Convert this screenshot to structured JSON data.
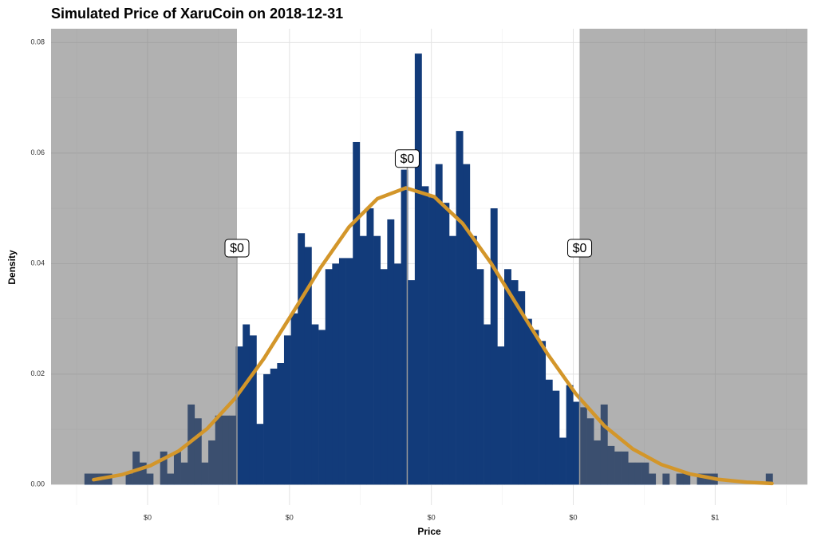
{
  "chart_data": {
    "type": "histogram",
    "title": "Simulated Price of XaruCoin on 2018-12-31",
    "xlabel": "Price",
    "ylabel": "Density",
    "bins": [
      0.0555,
      0.06035,
      0.0652,
      0.07005,
      0.0749,
      0.07975,
      0.0846,
      0.08945,
      0.0943,
      0.09915,
      0.104,
      0.10885,
      0.1137,
      0.11855,
      0.1234,
      0.12825,
      0.1331,
      0.13795,
      0.1428,
      0.14765,
      0.1525,
      0.15735,
      0.1622,
      0.16705,
      0.1719,
      0.17675,
      0.1816,
      0.18645,
      0.1913,
      0.19615,
      0.201,
      0.20585,
      0.2107,
      0.21555,
      0.2204,
      0.22525,
      0.2301,
      0.23495,
      0.2398,
      0.24465,
      0.2495,
      0.25435,
      0.2592,
      0.26405,
      0.2689,
      0.27375,
      0.2786,
      0.28345,
      0.2883,
      0.29315,
      0.298,
      0.30285,
      0.3077,
      0.31255,
      0.3174,
      0.32225,
      0.3271,
      0.33195,
      0.3368,
      0.34165,
      0.3465,
      0.35135,
      0.3562,
      0.36105,
      0.3659,
      0.37075,
      0.3756,
      0.38045,
      0.3853,
      0.39015,
      0.395,
      0.39985,
      0.4047,
      0.40955,
      0.4144,
      0.41925,
      0.4241,
      0.42895,
      0.4338,
      0.43865,
      0.4435,
      0.44835,
      0.4532,
      0.45805,
      0.4629,
      0.46775,
      0.4726,
      0.47745,
      0.4823,
      0.48715,
      0.492,
      0.49685,
      0.5017,
      0.50655,
      0.5114,
      0.51625,
      0.5211,
      0.52595,
      0.5308,
      0.53565,
      0.5405
    ],
    "values": [
      0.002,
      0.002,
      0.002,
      0.002,
      0,
      0,
      0.002,
      0.006,
      0.004,
      0.002,
      0,
      0.006,
      0.002,
      0.006,
      0.004,
      0.0145,
      0.012,
      0.004,
      0.008,
      0.0125,
      0.0125,
      0.0125,
      0.025,
      0.029,
      0.027,
      0.011,
      0.02,
      0.021,
      0.022,
      0.027,
      0.031,
      0.0455,
      0.043,
      0.029,
      0.028,
      0.039,
      0.04,
      0.041,
      0.041,
      0.062,
      0.045,
      0.05,
      0.045,
      0.039,
      0.048,
      0.04,
      0.057,
      0.037,
      0.078,
      0.054,
      0.052,
      0.058,
      0.051,
      0.045,
      0.064,
      0.058,
      0.045,
      0.039,
      0.029,
      0.05,
      0.025,
      0.039,
      0.037,
      0.035,
      0.03,
      0.028,
      0.026,
      0.019,
      0.017,
      0.0085,
      0.018,
      0.015,
      0.014,
      0.012,
      0.008,
      0.0145,
      0.007,
      0.006,
      0.006,
      0.004,
      0.004,
      0.004,
      0.002,
      0,
      0.002,
      0,
      0.002,
      0.002,
      0,
      0.002,
      0.002,
      0.002,
      0,
      0,
      0,
      0,
      0,
      0,
      0,
      0.002
    ],
    "color": "#123b7a",
    "curve": {
      "color": "#d3962a",
      "x": [
        0.062,
        0.082,
        0.102,
        0.122,
        0.142,
        0.162,
        0.182,
        0.202,
        0.222,
        0.242,
        0.262,
        0.282,
        0.302,
        0.322,
        0.342,
        0.362,
        0.382,
        0.402,
        0.422,
        0.442,
        0.462,
        0.482,
        0.502,
        0.522,
        0.54
      ],
      "values": [
        0.00089,
        0.00181,
        0.00344,
        0.0061,
        0.01013,
        0.01572,
        0.02282,
        0.03097,
        0.0393,
        0.04664,
        0.05175,
        0.0537,
        0.0521,
        0.04727,
        0.0401,
        0.03181,
        0.0236,
        0.01637,
        0.01062,
        0.00644,
        0.00365,
        0.00194,
        0.00096,
        0.00045,
        0.00021
      ]
    },
    "annotations": [
      {
        "x": 0.163,
        "y": 0.0428,
        "label": "$0"
      },
      {
        "x": 0.283,
        "y": 0.059,
        "label": "$0"
      },
      {
        "x": 0.4045,
        "y": 0.0428,
        "label": "$0"
      }
    ],
    "shade_color": "#646464",
    "xlim": [
      0.032,
      0.565
    ],
    "ylim": [
      -0.0037,
      0.0825
    ],
    "xticks": [
      {
        "value": 0.1,
        "label": "$0"
      },
      {
        "value": 0.2,
        "label": "$0"
      },
      {
        "value": 0.3,
        "label": "$0"
      },
      {
        "value": 0.4,
        "label": "$0"
      },
      {
        "value": 0.5,
        "label": "$1"
      }
    ],
    "yticks": [
      {
        "value": 0,
        "label": "0.00"
      },
      0.02,
      0.04,
      0.06,
      0.08
    ],
    "grid": true,
    "minor_grid": true
  }
}
